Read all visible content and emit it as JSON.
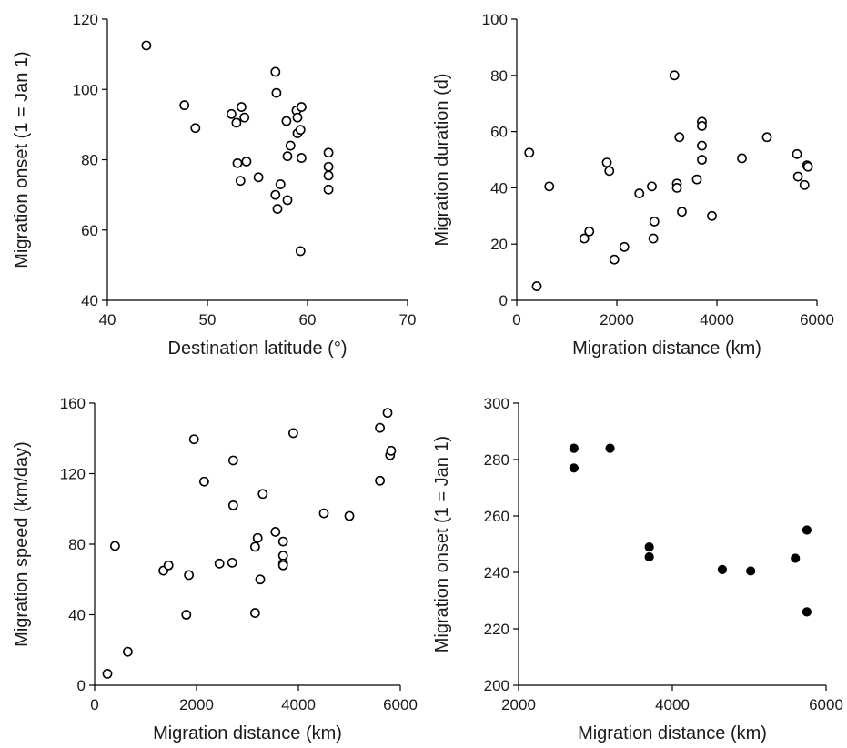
{
  "chart_data": [
    {
      "type": "scatter",
      "panel": "top-left",
      "xlabel": "Destination latitude (°)",
      "ylabel": "Migration onset (1 = Jan 1)",
      "xlim": [
        40,
        70
      ],
      "ylim": [
        40,
        120
      ],
      "xticks": [
        40,
        50,
        60,
        70
      ],
      "yticks": [
        40,
        60,
        80,
        100,
        120
      ],
      "marker": "open",
      "points": [
        [
          43.9,
          112.5
        ],
        [
          47.7,
          95.5
        ],
        [
          48.8,
          89
        ],
        [
          52.4,
          93
        ],
        [
          53.4,
          95
        ],
        [
          53.7,
          92
        ],
        [
          52.9,
          90.5
        ],
        [
          53,
          79
        ],
        [
          53.9,
          79.5
        ],
        [
          53.3,
          74
        ],
        [
          55.1,
          75
        ],
        [
          56.8,
          105
        ],
        [
          56.9,
          99
        ],
        [
          57.9,
          91
        ],
        [
          58.3,
          84
        ],
        [
          58.9,
          94
        ],
        [
          59,
          92
        ],
        [
          59.4,
          95
        ],
        [
          59,
          87.5
        ],
        [
          59.3,
          88.5
        ],
        [
          59.4,
          80.5
        ],
        [
          58,
          81
        ],
        [
          57.3,
          73
        ],
        [
          56.8,
          70
        ],
        [
          57,
          66
        ],
        [
          58,
          68.5
        ],
        [
          59.3,
          54
        ],
        [
          62.1,
          82
        ],
        [
          62.1,
          78
        ],
        [
          62.1,
          75.5
        ],
        [
          62.1,
          71.5
        ]
      ]
    },
    {
      "type": "scatter",
      "panel": "top-right",
      "xlabel": "Migration distance (km)",
      "ylabel": "Migration duration (d)",
      "xlim": [
        0,
        6000
      ],
      "ylim": [
        0,
        100
      ],
      "xticks": [
        0,
        2000,
        4000,
        6000
      ],
      "yticks": [
        0,
        20,
        40,
        60,
        80,
        100
      ],
      "marker": "open",
      "points": [
        [
          250,
          52.5
        ],
        [
          400,
          5
        ],
        [
          650,
          40.5
        ],
        [
          1350,
          22
        ],
        [
          1450,
          24.5
        ],
        [
          1800,
          49
        ],
        [
          1850,
          46
        ],
        [
          1950,
          14.5
        ],
        [
          2150,
          19
        ],
        [
          2450,
          38
        ],
        [
          2700,
          40.5
        ],
        [
          2750,
          28
        ],
        [
          2730,
          22
        ],
        [
          3150,
          80
        ],
        [
          3200,
          41.5
        ],
        [
          3200,
          40
        ],
        [
          3250,
          58
        ],
        [
          3300,
          31.5
        ],
        [
          3600,
          43
        ],
        [
          3700,
          63.5
        ],
        [
          3700,
          62
        ],
        [
          3700,
          55
        ],
        [
          3700,
          50
        ],
        [
          3900,
          30
        ],
        [
          4500,
          50.5
        ],
        [
          5000,
          58
        ],
        [
          5600,
          52
        ],
        [
          5620,
          44
        ],
        [
          5750,
          41
        ],
        [
          5800,
          48
        ],
        [
          5820,
          47.5
        ]
      ]
    },
    {
      "type": "scatter",
      "panel": "bottom-left",
      "xlabel": "Migration distance (km)",
      "ylabel": "Migration speed (km/day)",
      "xlim": [
        0,
        6000
      ],
      "ylim": [
        0,
        160
      ],
      "xticks": [
        0,
        2000,
        4000,
        6000
      ],
      "yticks": [
        0,
        40,
        80,
        120,
        160
      ],
      "marker": "open",
      "points": [
        [
          250,
          6.5
        ],
        [
          400,
          79
        ],
        [
          650,
          19
        ],
        [
          1350,
          65
        ],
        [
          1450,
          68
        ],
        [
          1800,
          40
        ],
        [
          1850,
          62.5
        ],
        [
          1950,
          139.5
        ],
        [
          2150,
          115.5
        ],
        [
          2450,
          69
        ],
        [
          2700,
          69.5
        ],
        [
          2720,
          127.5
        ],
        [
          2720,
          102
        ],
        [
          3150,
          41
        ],
        [
          3150,
          78.5
        ],
        [
          3200,
          83.5
        ],
        [
          3250,
          60
        ],
        [
          3300,
          108.5
        ],
        [
          3550,
          87
        ],
        [
          3700,
          81.5
        ],
        [
          3700,
          73.5
        ],
        [
          3700,
          69
        ],
        [
          3700,
          68
        ],
        [
          3900,
          143
        ],
        [
          4500,
          97.5
        ],
        [
          5000,
          96
        ],
        [
          5600,
          116
        ],
        [
          5600,
          146
        ],
        [
          5750,
          154.5
        ],
        [
          5800,
          130.5
        ],
        [
          5820,
          133
        ]
      ]
    },
    {
      "type": "scatter",
      "panel": "bottom-right",
      "xlabel": "Migration distance (km)",
      "ylabel": "Migration onset (1 = Jan 1)",
      "xlim": [
        2000,
        6000
      ],
      "ylim": [
        200,
        300
      ],
      "xticks": [
        2000,
        4000,
        6000
      ],
      "yticks": [
        200,
        220,
        240,
        260,
        280,
        300
      ],
      "marker": "filled",
      "points": [
        [
          2720,
          284
        ],
        [
          2720,
          277
        ],
        [
          3190,
          284
        ],
        [
          3700,
          249
        ],
        [
          3700,
          245.5
        ],
        [
          4650,
          241
        ],
        [
          5020,
          240.5
        ],
        [
          5600,
          245
        ],
        [
          5750,
          255
        ],
        [
          5750,
          226
        ]
      ]
    }
  ]
}
